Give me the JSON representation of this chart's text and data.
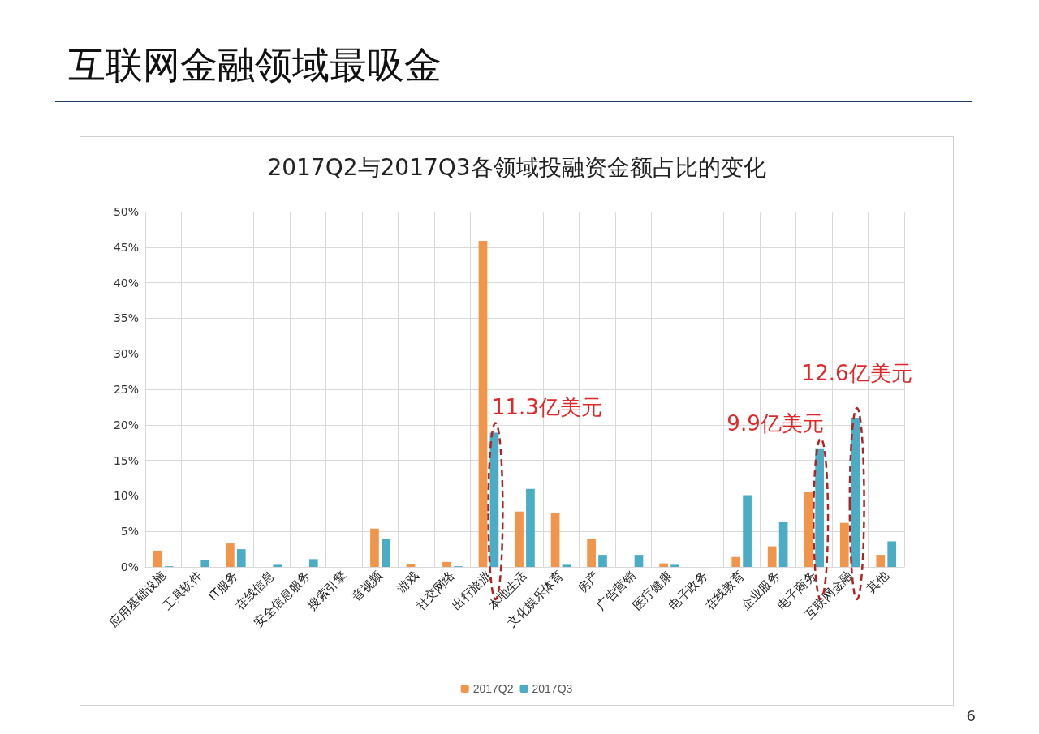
{
  "chart_data": {
    "type": "bar",
    "title": "互联网金融领域最吸金",
    "subtitle": "2017Q2与2017Q3各领域投融资金额占比的变化",
    "categories": [
      "应用基础设施",
      "工具软件",
      "IT服务",
      "在线信息",
      "安全信息服务",
      "搜索引擎",
      "音视频",
      "游戏",
      "社交网络",
      "出行旅游",
      "本地生活",
      "文化娱乐体育",
      "房产",
      "广告营销",
      "医疗健康",
      "电子政务",
      "在线教育",
      "企业服务",
      "电子商务",
      "互联网金融",
      "其他"
    ],
    "series": [
      {
        "name": "2017Q2",
        "color": "#f0954a",
        "values": [
          2.3,
          0,
          3.3,
          0,
          0,
          0,
          5.4,
          0.4,
          0.7,
          45.9,
          7.8,
          7.6,
          3.9,
          0,
          0.5,
          0,
          1.4,
          2.9,
          10.5,
          6.2,
          1.7
        ]
      },
      {
        "name": "2017Q3",
        "color": "#4bacc6",
        "values": [
          0.1,
          1.0,
          2.5,
          0.3,
          1.1,
          0,
          3.9,
          0,
          0.1,
          18.9,
          11.0,
          0.3,
          1.7,
          1.7,
          0.3,
          0,
          10.1,
          6.3,
          16.7,
          21.0,
          3.6
        ]
      }
    ],
    "ylim": [
      0,
      50
    ],
    "yticks": [
      {
        "value": 0,
        "label": "0%"
      },
      {
        "value": 5,
        "label": "5%"
      },
      {
        "value": 10,
        "label": "10%"
      },
      {
        "value": 15,
        "label": "15%"
      },
      {
        "value": 20,
        "label": "20%"
      },
      {
        "value": 25,
        "label": "25%"
      },
      {
        "value": 30,
        "label": "30%"
      },
      {
        "value": 35,
        "label": "35%"
      },
      {
        "value": 40,
        "label": "40%"
      },
      {
        "value": 45,
        "label": "45%"
      },
      {
        "value": 50,
        "label": "50%"
      }
    ],
    "grid": true,
    "legend": "bottom",
    "annotations": [
      {
        "text": "11.3亿美元",
        "x": "出行旅游",
        "y": 18.9
      },
      {
        "text": "9.9亿美元",
        "x": "电子商务",
        "y": 16.7
      },
      {
        "text": "12.6亿美元",
        "x": "互联网金融",
        "y": 21.0
      },
      "6"
    ]
  }
}
